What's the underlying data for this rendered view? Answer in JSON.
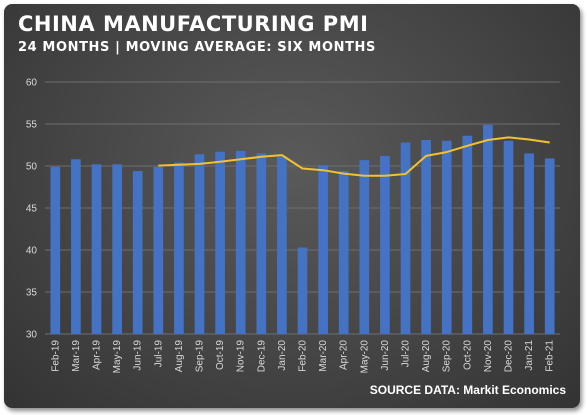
{
  "header": {
    "title": "CHINA MANUFACTURING PMI",
    "subtitle": "24 MONTHS | MOVING AVERAGE: SIX MONTHS"
  },
  "footer": {
    "source": "SOURCE DATA: Markit Economics"
  },
  "colors": {
    "bar": "#4472c4",
    "line": "#f2c12e",
    "grid": "#6e6e6e",
    "tick_text": "#d9d9d9"
  },
  "chart_data": {
    "type": "bar",
    "categories": [
      "Feb-19",
      "Mar-19",
      "Apr-19",
      "May-19",
      "Jun-19",
      "Jul-19",
      "Aug-19",
      "Sep-19",
      "Oct-19",
      "Nov-19",
      "Dec-19",
      "Jan-20",
      "Feb-20",
      "Mar-20",
      "Apr-20",
      "May-20",
      "Jun-20",
      "Jul-20",
      "Aug-20",
      "Sep-20",
      "Oct-20",
      "Nov-20",
      "Dec-20",
      "Jan-21",
      "Feb-21"
    ],
    "series": [
      {
        "type": "bar",
        "values": [
          49.9,
          50.8,
          50.2,
          50.2,
          49.4,
          49.9,
          50.4,
          51.4,
          51.7,
          51.8,
          51.5,
          51.1,
          40.3,
          50.1,
          49.4,
          50.7,
          51.2,
          52.8,
          53.1,
          53.0,
          53.6,
          54.9,
          53.0,
          51.5,
          50.9
        ]
      },
      {
        "type": "line",
        "values": [
          null,
          null,
          null,
          null,
          null,
          50.05,
          50.15,
          50.25,
          50.5,
          50.8,
          51.1,
          51.3,
          49.7,
          49.5,
          49.1,
          48.85,
          48.85,
          49.05,
          51.2,
          51.65,
          52.4,
          53.1,
          53.4,
          53.15,
          52.8
        ]
      }
    ],
    "ylim": [
      30,
      60
    ],
    "yticks": [
      30,
      35,
      40,
      45,
      50,
      55,
      60
    ],
    "grid": true,
    "legend": "none"
  }
}
